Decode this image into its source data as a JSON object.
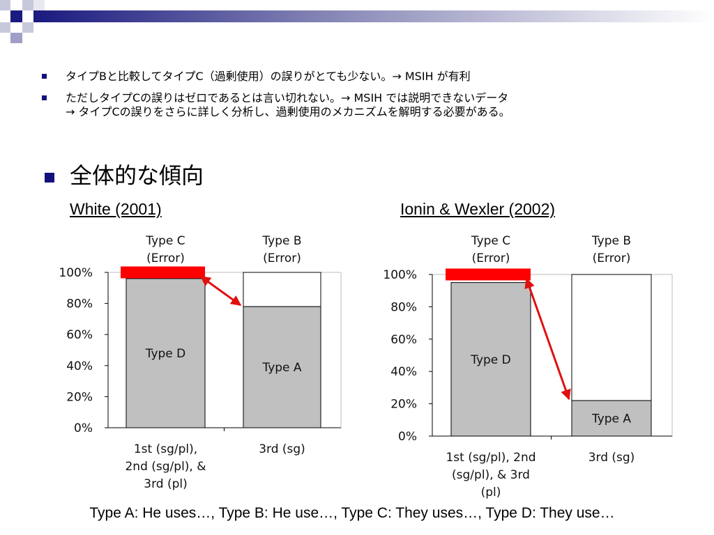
{
  "slide": {
    "bullets": [
      "タイプBと比較してタイプC（過剰使用）の誤りがとても少ない。→ MSIH が有利",
      "ただしタイプCの誤りはゼロであるとは言い切れない。→ MSIH では説明できないデータ",
      "→ タイプCの誤りをさらに詳しく分析し、過剰使用のメカニズムを解明する必要がある。"
    ],
    "heading": "全体的な傾向",
    "footer": "Type A: He uses…, Type B: He use…, Type C: They uses…, Type D: They use…"
  },
  "colors": {
    "grey_bar": "#c0c0c0",
    "error_red": "#ff0000",
    "arrow_red": "#e01010",
    "bullet_navy": "#12127a"
  },
  "chart_data": [
    {
      "type": "bar",
      "title": "White (2001)",
      "ylim": [
        0,
        100
      ],
      "y_ticks": [
        "0%",
        "20%",
        "40%",
        "60%",
        "80%",
        "100%"
      ],
      "categories": [
        "1st (sg/pl), 2nd (sg/pl), & 3rd (pl)",
        "3rd (sg)"
      ],
      "category_lines": [
        [
          "1st (sg/pl),",
          "2nd (sg/pl), &",
          "3rd (pl)"
        ],
        [
          "3rd (sg)"
        ]
      ],
      "top_labels": [
        [
          "Type C",
          "(Error)"
        ],
        [
          "Type B",
          "(Error)"
        ]
      ],
      "series": [
        {
          "name": "Type D",
          "values": [
            96,
            null
          ]
        },
        {
          "name": "Type C",
          "values": [
            4,
            null
          ]
        },
        {
          "name": "Type A",
          "values": [
            null,
            78
          ]
        },
        {
          "name": "Type B",
          "values": [
            null,
            22
          ]
        }
      ],
      "grid": false
    },
    {
      "type": "bar",
      "title": "Ionin & Wexler (2002)",
      "ylim": [
        0,
        100
      ],
      "y_ticks": [
        "0%",
        "20%",
        "40%",
        "60%",
        "80%",
        "100%"
      ],
      "categories": [
        "1st (sg/pl), 2nd (sg/pl), & 3rd (pl)",
        "3rd (sg)"
      ],
      "category_lines": [
        [
          "1st (sg/pl), 2nd",
          "(sg/pl), & 3rd",
          "(pl)"
        ],
        [
          "3rd (sg)"
        ]
      ],
      "top_labels": [
        [
          "Type C",
          "(Error)"
        ],
        [
          "Type B",
          "(Error)"
        ]
      ],
      "series": [
        {
          "name": "Type D",
          "values": [
            95,
            null
          ]
        },
        {
          "name": "Type C",
          "values": [
            5,
            null
          ]
        },
        {
          "name": "Type A",
          "values": [
            null,
            22
          ]
        },
        {
          "name": "Type B",
          "values": [
            null,
            78
          ]
        }
      ],
      "grid": false
    }
  ]
}
